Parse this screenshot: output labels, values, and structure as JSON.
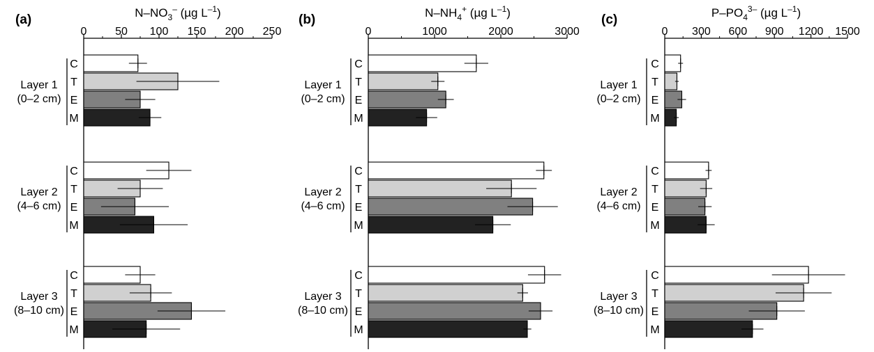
{
  "chart_data": [
    {
      "type": "bar",
      "orientation": "horizontal",
      "panel_label": "(a)",
      "axis_title": {
        "base": "N–NO",
        "sub": "3",
        "sup1": "–",
        "mid": " (µg L",
        "sup2": "–1",
        "end": ")"
      },
      "xlim": [
        0,
        250
      ],
      "ticks": [
        "0",
        "50",
        "100",
        "150",
        "200",
        "250"
      ],
      "tick_values": [
        0,
        50,
        100,
        150,
        200,
        250
      ],
      "layers": [
        {
          "name": "Layer 1",
          "range": "(0–2 cm)"
        },
        {
          "name": "Layer 2",
          "range": "(4–6 cm)"
        },
        {
          "name": "Layer 3",
          "range": "(8–10 cm)"
        }
      ],
      "treatments": [
        "C",
        "T",
        "E",
        "M"
      ],
      "values": [
        [
          72,
          125,
          75,
          88
        ],
        [
          113,
          75,
          68,
          93
        ],
        [
          75,
          89,
          143,
          83
        ]
      ],
      "errors": [
        [
          12,
          55,
          20,
          15
        ],
        [
          30,
          30,
          45,
          45
        ],
        [
          20,
          28,
          45,
          45
        ]
      ]
    },
    {
      "type": "bar",
      "orientation": "horizontal",
      "panel_label": "(b)",
      "axis_title": {
        "base": "N–NH",
        "sub": "4",
        "sup1": "+",
        "mid": " (µg L",
        "sup2": "–1",
        "end": ")"
      },
      "xlim": [
        0,
        3000
      ],
      "ticks": [
        "0",
        "1000",
        "2000",
        "3000"
      ],
      "tick_values": [
        0,
        1000,
        2000,
        3000
      ],
      "layers": [
        {
          "name": "Layer 1",
          "range": "(0–2 cm)"
        },
        {
          "name": "Layer 2",
          "range": "(4–6 cm)"
        },
        {
          "name": "Layer 3",
          "range": "(8–10 cm)"
        }
      ],
      "treatments": [
        "C",
        "T",
        "E",
        "M"
      ],
      "values": [
        [
          1630,
          1050,
          1170,
          880
        ],
        [
          2650,
          2160,
          2480,
          1880
        ],
        [
          2660,
          2330,
          2600,
          2400
        ]
      ],
      "errors": [
        [
          180,
          100,
          120,
          160
        ],
        [
          120,
          380,
          380,
          270
        ],
        [
          250,
          80,
          180,
          60
        ]
      ]
    },
    {
      "type": "bar",
      "orientation": "horizontal",
      "panel_label": "(c)",
      "axis_title": {
        "base": "P–PO",
        "sub": "4",
        "sup1": "3–",
        "mid": " (µg L",
        "sup2": "–1",
        "end": ")"
      },
      "xlim": [
        0,
        1500
      ],
      "ticks": [
        "0",
        "300",
        "600",
        "900",
        "1200",
        "1500"
      ],
      "tick_values": [
        0,
        300,
        600,
        900,
        1200,
        1500
      ],
      "layers": [
        {
          "name": "Layer 1",
          "range": "(0–2 cm)"
        },
        {
          "name": "Layer 2",
          "range": "(4–6 cm)"
        },
        {
          "name": "Layer 3",
          "range": "(8–10 cm)"
        }
      ],
      "treatments": [
        "C",
        "T",
        "E",
        "M"
      ],
      "values": [
        [
          130,
          100,
          140,
          95
        ],
        [
          360,
          340,
          330,
          340
        ],
        [
          1180,
          1140,
          920,
          720
        ]
      ],
      "errors": [
        [
          20,
          15,
          35,
          20
        ],
        [
          25,
          50,
          55,
          70
        ],
        [
          300,
          230,
          230,
          90
        ]
      ]
    }
  ],
  "colors": {
    "C": "#ffffff",
    "T": "#d0d0d0",
    "E": "#808080",
    "M": "#222222"
  }
}
